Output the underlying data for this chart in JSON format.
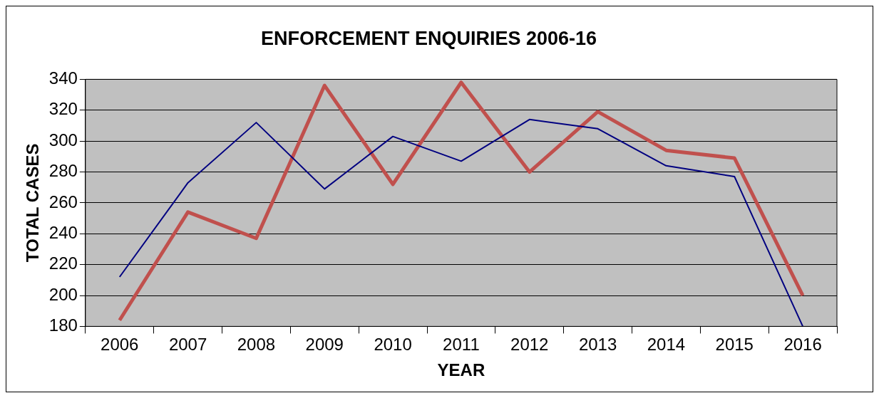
{
  "chart_data": {
    "type": "line",
    "title": "ENFORCEMENT ENQUIRIES 2006-16",
    "xlabel": "YEAR",
    "ylabel": "TOTAL CASES",
    "categories": [
      "2006",
      "2007",
      "2008",
      "2009",
      "2010",
      "2011",
      "2012",
      "2013",
      "2014",
      "2015",
      "2016"
    ],
    "series": [
      {
        "color": "#000080",
        "values": [
          212,
          273,
          312,
          269,
          303,
          287,
          314,
          308,
          284,
          277,
          180
        ]
      },
      {
        "color": "#c0504d",
        "values": [
          184,
          254,
          237,
          336,
          272,
          338,
          280,
          319,
          294,
          289,
          200
        ]
      }
    ],
    "ylim": [
      180,
      340
    ],
    "yticks": [
      180,
      200,
      220,
      240,
      260,
      280,
      300,
      320,
      340
    ],
    "grid": "y",
    "legend": false,
    "marker": "none",
    "line_style": "solid"
  }
}
